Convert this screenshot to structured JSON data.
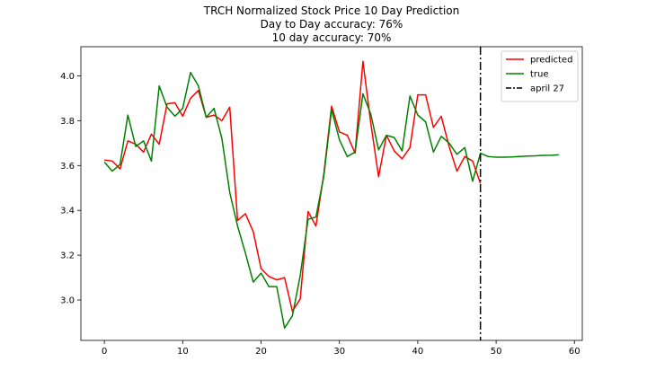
{
  "chart_data": {
    "type": "line",
    "title_lines": [
      "TRCH Normalized Stock Price 10 Day Prediction",
      "Day to Day accuracy: 76%",
      "10 day accuracy: 70%"
    ],
    "xlabel": "",
    "ylabel": "",
    "xlim": [
      -3,
      61
    ],
    "ylim": [
      2.82,
      4.13
    ],
    "x_ticks": [
      0,
      10,
      20,
      30,
      40,
      50,
      60
    ],
    "y_ticks": [
      3.0,
      3.2,
      3.4,
      3.6,
      3.8,
      4.0
    ],
    "x_tick_labels": [
      "0",
      "10",
      "20",
      "30",
      "40",
      "50",
      "60"
    ],
    "y_tick_labels": [
      "3.0",
      "3.2",
      "3.4",
      "3.6",
      "3.8",
      "4.0"
    ],
    "grid": false,
    "legend_position": "top-right",
    "series": [
      {
        "name": "predicted",
        "color": "#ff0000",
        "x": [
          0,
          1,
          2,
          3,
          4,
          5,
          6,
          7,
          8,
          9,
          10,
          11,
          12,
          13,
          14,
          15,
          16,
          17,
          18,
          19,
          20,
          21,
          22,
          23,
          24,
          25,
          26,
          27,
          28,
          29,
          30,
          31,
          32,
          33,
          34,
          35,
          36,
          37,
          38,
          39,
          40,
          41,
          42,
          43,
          44,
          45,
          46,
          47,
          48
        ],
        "values": [
          3.625,
          3.62,
          3.585,
          3.71,
          3.695,
          3.66,
          3.74,
          3.695,
          3.875,
          3.88,
          3.82,
          3.9,
          3.935,
          3.815,
          3.825,
          3.8,
          3.86,
          3.355,
          3.385,
          3.305,
          3.14,
          3.105,
          3.09,
          3.1,
          2.95,
          3.005,
          3.395,
          3.33,
          3.56,
          3.865,
          3.75,
          3.735,
          3.655,
          4.065,
          3.79,
          3.55,
          3.735,
          3.665,
          3.63,
          3.68,
          3.915,
          3.915,
          3.77,
          3.82,
          3.685,
          3.575,
          3.64,
          3.62,
          3.52
        ]
      },
      {
        "name": "true",
        "color": "#008000",
        "x": [
          0,
          1,
          2,
          3,
          4,
          5,
          6,
          7,
          8,
          9,
          10,
          11,
          12,
          13,
          14,
          15,
          16,
          17,
          18,
          19,
          20,
          21,
          22,
          23,
          24,
          25,
          26,
          27,
          28,
          29,
          30,
          31,
          32,
          33,
          34,
          35,
          36,
          37,
          38,
          39,
          40,
          41,
          42,
          43,
          44,
          45,
          46,
          47,
          48,
          49,
          50,
          51,
          52,
          53,
          54,
          55,
          56,
          57,
          58
        ],
        "values": [
          3.615,
          3.575,
          3.605,
          3.825,
          3.685,
          3.71,
          3.62,
          3.955,
          3.86,
          3.82,
          3.855,
          4.015,
          3.955,
          3.815,
          3.855,
          3.72,
          3.48,
          3.33,
          3.21,
          3.08,
          3.12,
          3.06,
          3.06,
          2.875,
          2.93,
          3.11,
          3.36,
          3.37,
          3.55,
          3.85,
          3.715,
          3.64,
          3.66,
          3.92,
          3.83,
          3.67,
          3.735,
          3.725,
          3.665,
          3.91,
          3.825,
          3.795,
          3.66,
          3.73,
          3.7,
          3.65,
          3.68,
          3.53,
          3.655,
          3.64,
          3.637,
          3.637,
          3.638,
          3.64,
          3.642,
          3.643,
          3.645,
          3.646,
          3.648
        ]
      }
    ],
    "vertical_lines": [
      {
        "name": "april 27",
        "x": 48,
        "color": "#000000",
        "style": "dashdot"
      }
    ]
  },
  "legend": {
    "items": [
      {
        "label": "predicted",
        "color": "#ff0000",
        "style": "solid"
      },
      {
        "label": "true",
        "color": "#008000",
        "style": "solid"
      },
      {
        "label": "april 27",
        "color": "#000000",
        "style": "dashdot"
      }
    ]
  }
}
